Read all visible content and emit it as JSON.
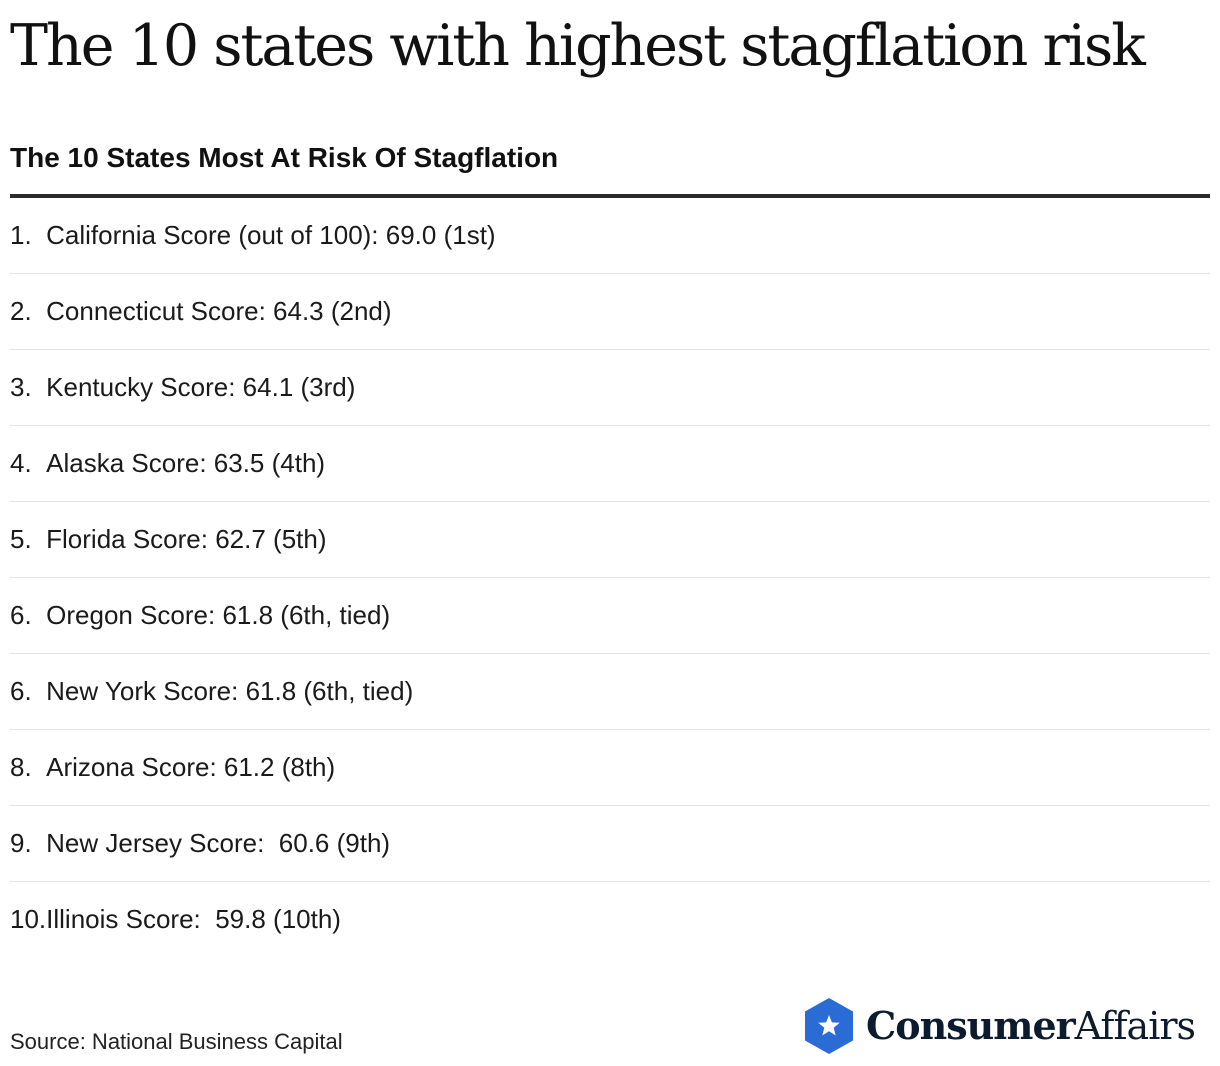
{
  "header": {
    "title": "The 10 states with highest stagflation risk",
    "subtitle": "The 10 States Most At Risk Of Stagflation"
  },
  "rows": [
    {
      "rank": "1.",
      "text": "California Score (out of 100): 69.0 (1st)"
    },
    {
      "rank": "2.",
      "text": "Connecticut Score: 64.3 (2nd)"
    },
    {
      "rank": "3.",
      "text": "Kentucky Score: 64.1 (3rd)"
    },
    {
      "rank": "4.",
      "text": "Alaska Score: 63.5 (4th)"
    },
    {
      "rank": "5.",
      "text": "Florida Score: 62.7 (5th)"
    },
    {
      "rank": "6.",
      "text": "Oregon Score: 61.8 (6th, tied)"
    },
    {
      "rank": "6.",
      "text": "New York Score: 61.8 (6th, tied)"
    },
    {
      "rank": "8.",
      "text": "Arizona Score: 61.2 (8th)"
    },
    {
      "rank": "9.",
      "text": "New Jersey Score:  60.6 (9th)"
    },
    {
      "rank": "10.",
      "text": "Illinois Score:  59.8 (10th)"
    }
  ],
  "footer": {
    "source": "Source: National Business Capital",
    "brand_primary": "Consumer",
    "brand_secondary": "Affairs",
    "logo_icon": "star-hexagon-icon"
  },
  "colors": {
    "logo_blue": "#2a6bd6",
    "logo_text": "#0d1b2e",
    "rule": "#2b2b2b",
    "divider": "#e3e3e3"
  }
}
